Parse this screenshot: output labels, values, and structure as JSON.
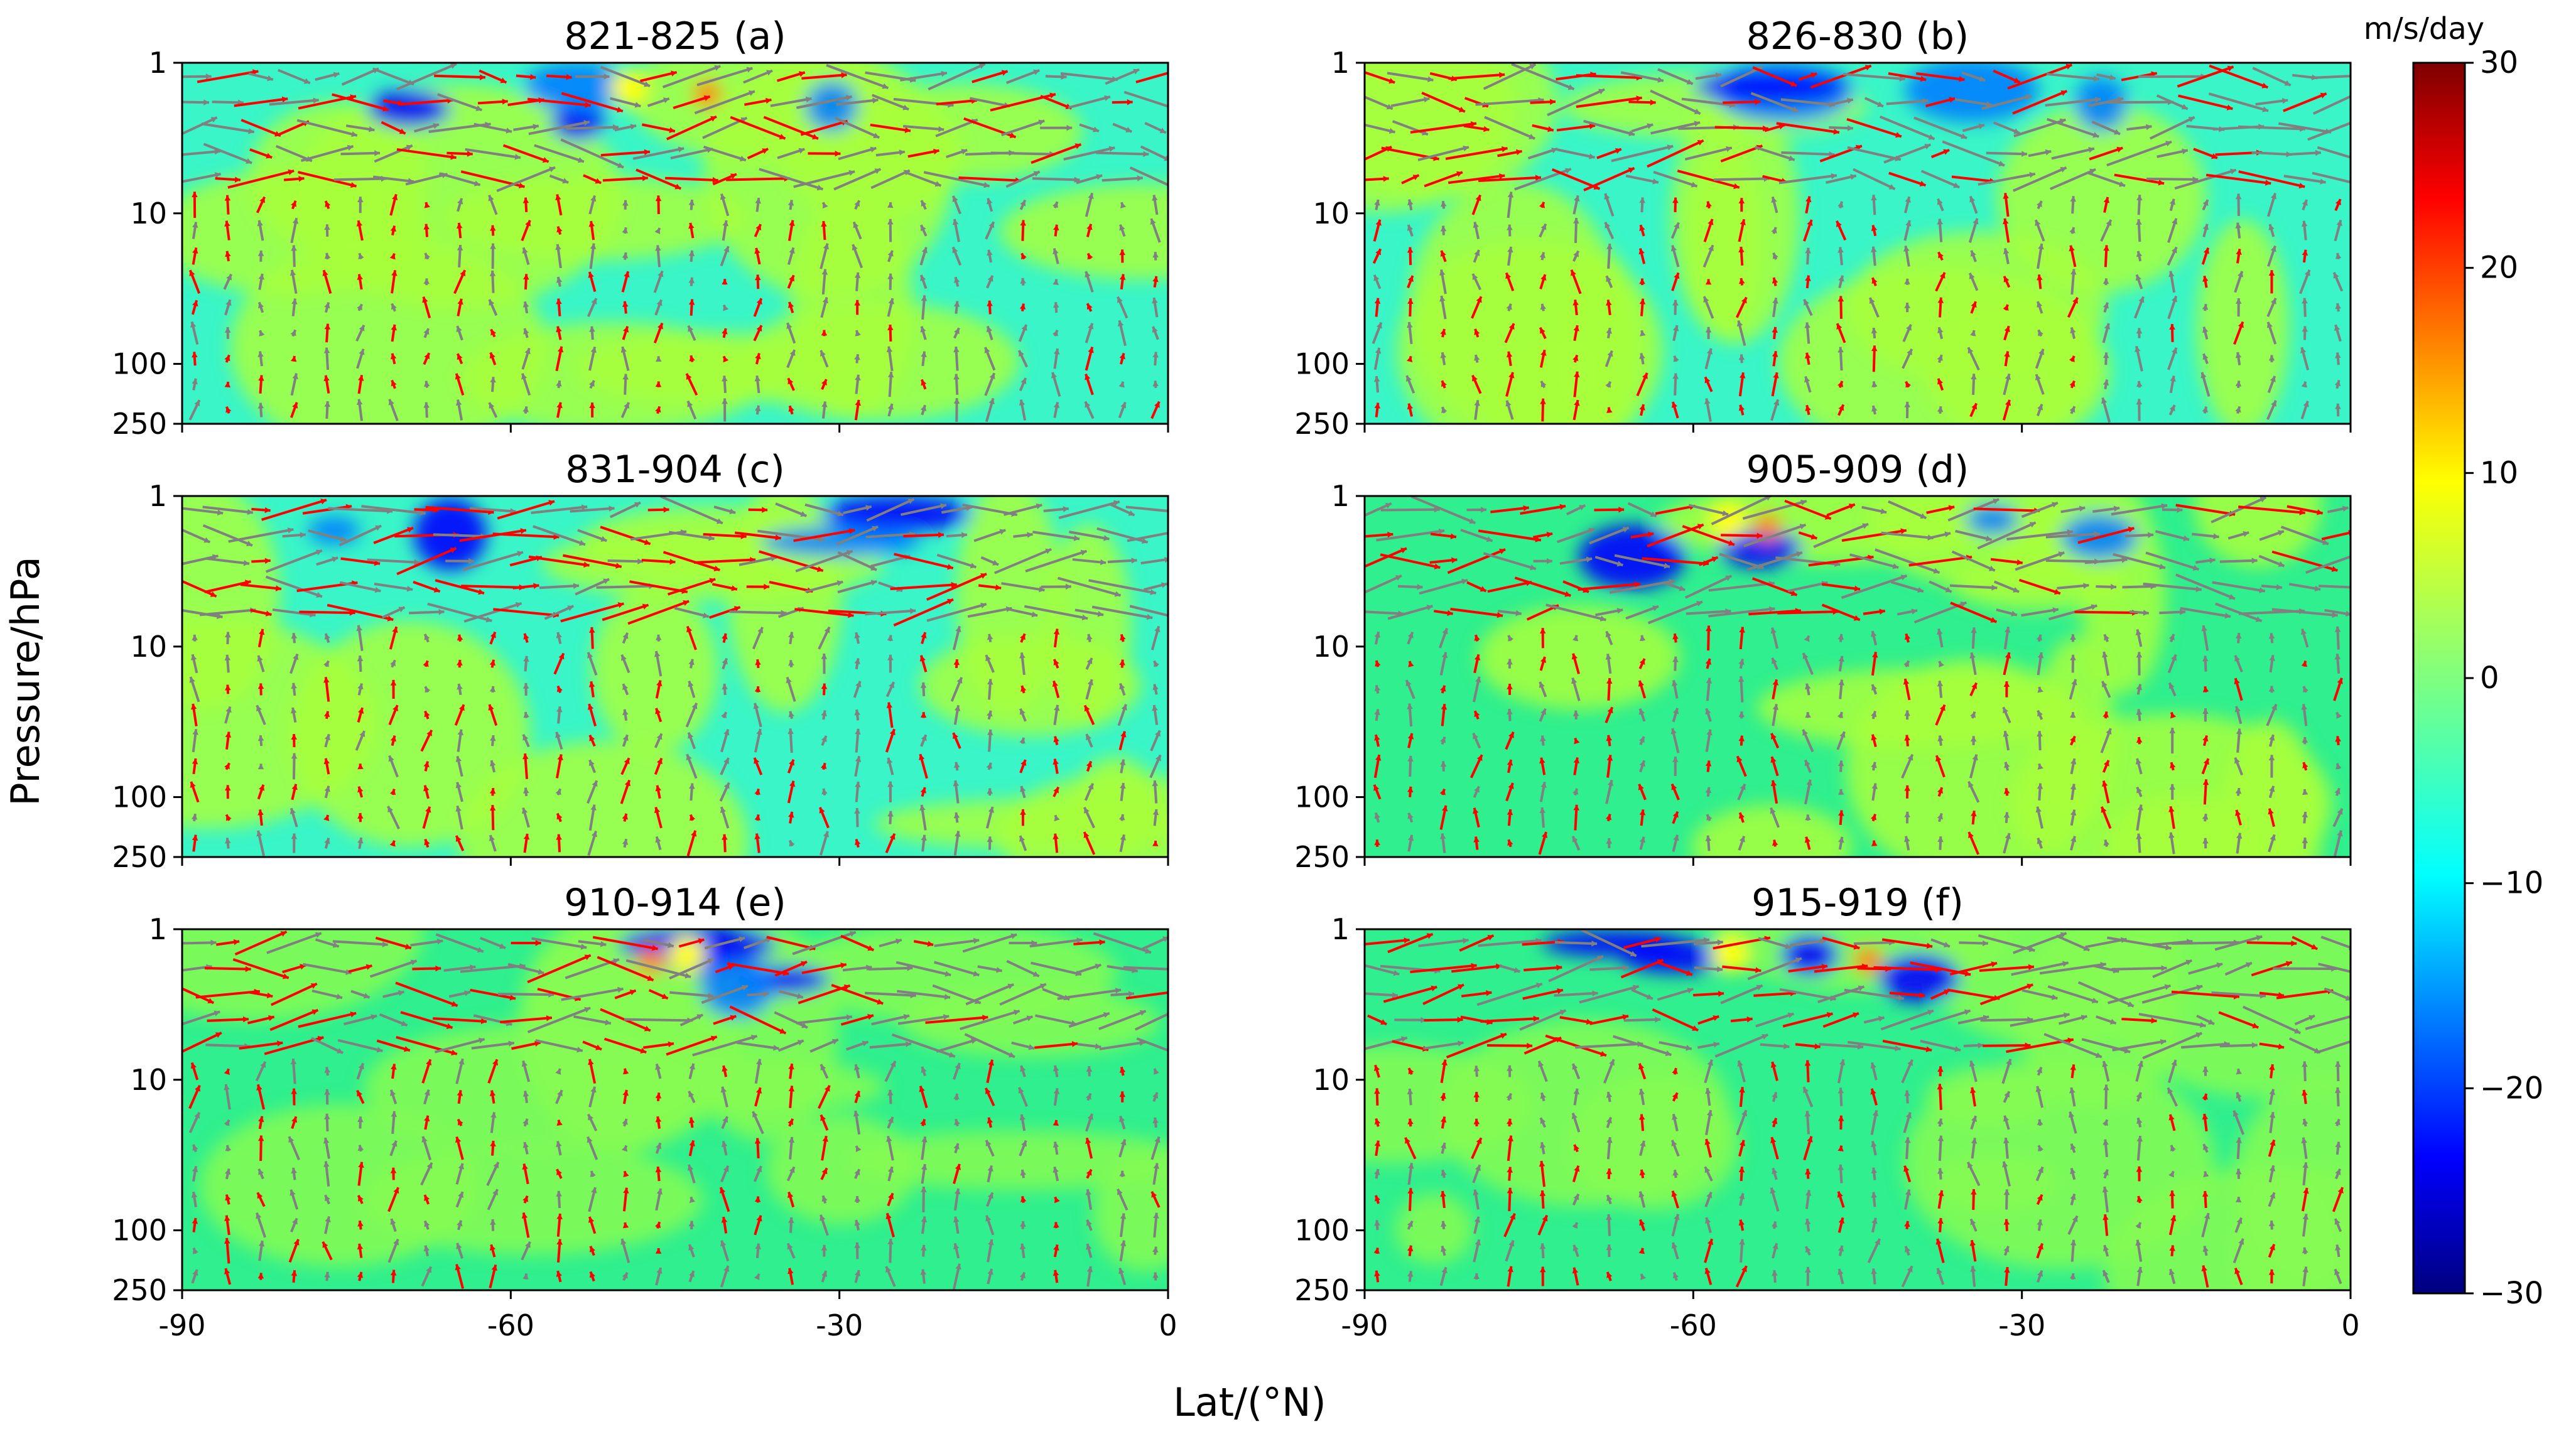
{
  "figure": {
    "ylabel": "Pressure/hPa",
    "xlabel": "Lat/(°N)",
    "colorbar_unit": "m/s/day",
    "colorbar_ticks": [
      "30",
      "20",
      "10",
      "0",
      "−10",
      "−20",
      "−30"
    ],
    "colormap": [
      "#00007f",
      "#0000ff",
      "#007fff",
      "#00ffff",
      "#7fff7f",
      "#ffff00",
      "#ff7f00",
      "#ff0000",
      "#7f0000"
    ]
  },
  "chart_data": {
    "type": "heatmap",
    "description_kind": "latitude-pressure contour maps with vector arrows",
    "x": {
      "label": "Lat/(°N)",
      "range": [
        -90,
        0
      ],
      "ticks": [
        -90,
        -60,
        -30,
        0
      ],
      "tick_labels": [
        "-90",
        "-60",
        "-30",
        "0"
      ]
    },
    "y": {
      "label": "Pressure/hPa",
      "scale": "log",
      "inverted": true,
      "range": [
        250,
        1
      ],
      "ticks": [
        1,
        10,
        100,
        250
      ],
      "tick_labels": [
        "1",
        "10",
        "100",
        "250"
      ]
    },
    "colorbar": {
      "label": "m/s/day",
      "range": [
        -30,
        30
      ],
      "ticks": [
        30,
        20,
        10,
        0,
        -10,
        -20,
        -30
      ]
    },
    "panels": [
      {
        "title": "821-825 (a)"
      },
      {
        "title": "826-830 (b)"
      },
      {
        "title": "831-904 (c)"
      },
      {
        "title": "905-909 (d)"
      },
      {
        "title": "910-914  (e)"
      },
      {
        "title": "915-919 (f)"
      }
    ],
    "vector_colors": {
      "positive": "#ff0000",
      "negative": "#808080"
    },
    "grid": false
  }
}
